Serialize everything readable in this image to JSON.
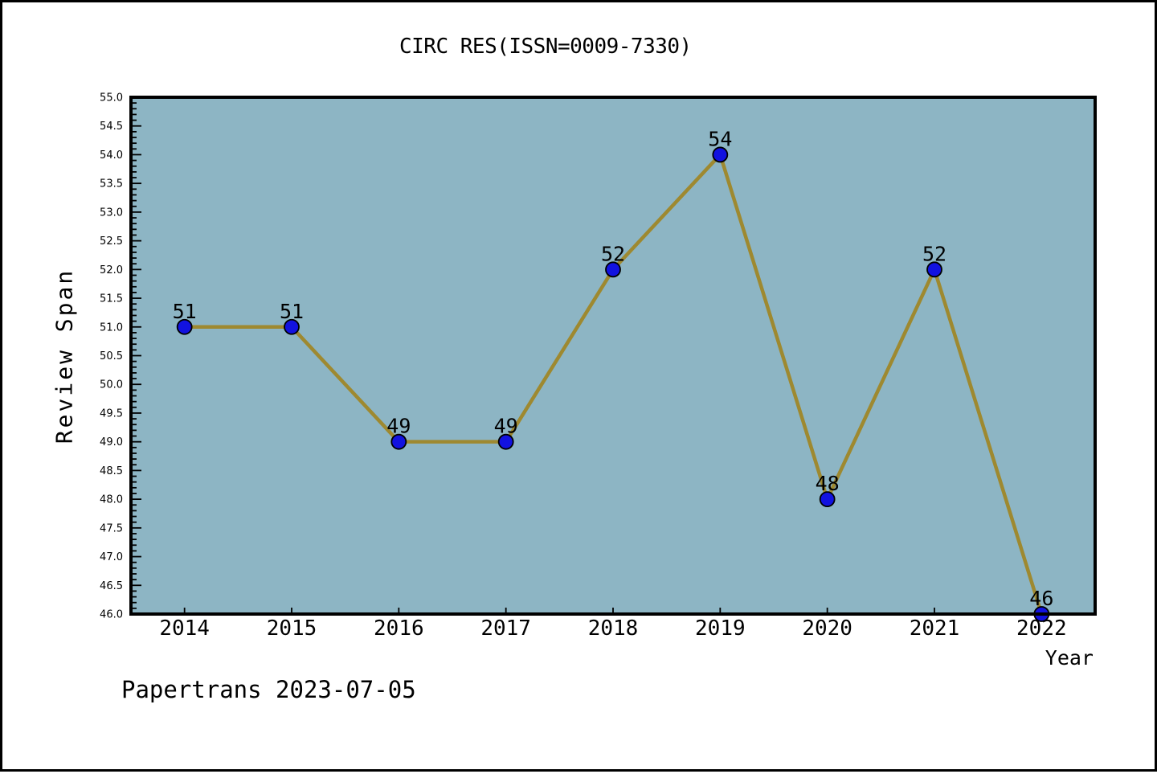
{
  "chart_data": {
    "type": "line",
    "title": "CIRC RES(ISSN=0009-7330)",
    "xlabel": "Year",
    "ylabel": "Review Span",
    "x": [
      2014,
      2015,
      2016,
      2017,
      2018,
      2019,
      2020,
      2021,
      2022
    ],
    "values": [
      51,
      51,
      49,
      49,
      52,
      54,
      48,
      52,
      46
    ],
    "xlim": [
      2013.5,
      2022.5
    ],
    "ylim": [
      46.0,
      55.0
    ],
    "y_major_step": 0.5,
    "y_minor_step": 0.1,
    "grid": false,
    "legend_position": "none",
    "colors": {
      "line": "#9e8930",
      "marker": "#1212e0",
      "marker_edge": "#000000",
      "plot_background": "#8db5c4",
      "frame": "#000000",
      "text": "#000000",
      "page_background": "#ffffff"
    }
  },
  "footer": {
    "text": "Papertrans 2023-07-05"
  }
}
